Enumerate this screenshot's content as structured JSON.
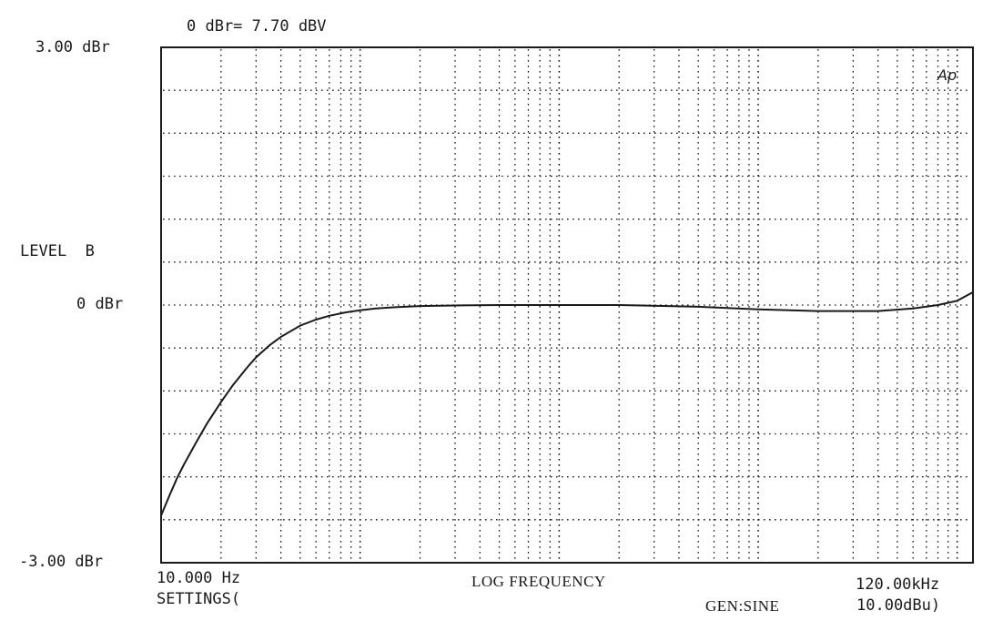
{
  "chart_data": {
    "type": "line",
    "reference": "0 dBr= 7.70 dBV",
    "ylabel": "LEVEL  B",
    "xlabel": "LOG FREQUENCY",
    "y_tick_labels": {
      "top": "3.00 dBr",
      "middle": "0 dBr",
      "bottom": "-3.00 dBr"
    },
    "x_tick_labels": {
      "left": "10.000 Hz",
      "right": "120.00kHz"
    },
    "ylim": [
      -3,
      3
    ],
    "xlim": [
      10,
      120000
    ],
    "x_scale": "log",
    "grid": true,
    "logo": "Ap",
    "footer": {
      "settings": "SETTINGS(",
      "generator": "GEN:SINE",
      "gen_level": "10.00dBu)"
    },
    "series": [
      {
        "x": [
          10,
          11,
          12,
          13,
          15,
          17,
          20,
          23,
          27,
          30,
          35,
          40,
          50,
          60,
          70,
          85,
          100,
          120,
          150,
          200,
          300,
          500,
          1000,
          2000,
          5000,
          10000,
          20000,
          40000,
          60000,
          80000,
          100000,
          120000
        ],
        "y": [
          -2.45,
          -2.22,
          -2.02,
          -1.86,
          -1.6,
          -1.38,
          -1.13,
          -0.93,
          -0.73,
          -0.61,
          -0.47,
          -0.37,
          -0.24,
          -0.17,
          -0.125,
          -0.085,
          -0.06,
          -0.04,
          -0.025,
          -0.012,
          -0.005,
          0.0,
          0.0,
          0.0,
          -0.02,
          -0.05,
          -0.07,
          -0.07,
          -0.04,
          0.0,
          0.05,
          0.15
        ]
      }
    ]
  }
}
